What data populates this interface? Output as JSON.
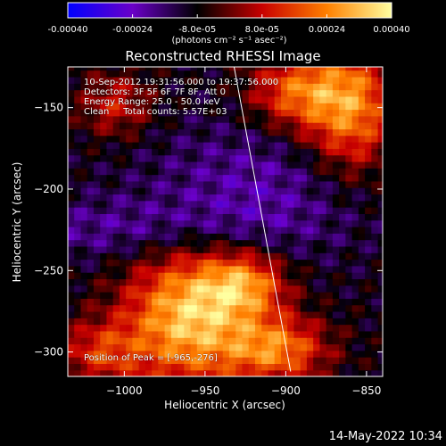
{
  "colorbar": {
    "ticks": [
      "-0.00040",
      "-0.00024",
      "-8.0e-05",
      "8.0e-05",
      "0.00024",
      "0.00040"
    ],
    "tick_values": [
      -0.0004,
      -0.00024,
      -8e-05,
      8e-05,
      0.00024,
      0.0004
    ],
    "range": [
      -0.0004,
      0.0004
    ],
    "unit_label": "(photons cm⁻² s⁻¹ asec⁻²)",
    "colors": [
      "#0000ff",
      "#6a00c8",
      "#000000",
      "#c80000",
      "#ff8000",
      "#ffffa0"
    ]
  },
  "chart_data": {
    "type": "heatmap",
    "title": "Reconstructed RHESSI Image",
    "xlabel": "Heliocentric X (arcsec)",
    "ylabel": "Heliocentric Y (arcsec)",
    "xlim": [
      -1035,
      -840
    ],
    "ylim": [
      -315,
      -125
    ],
    "xticks": [
      -1000,
      -950,
      -900,
      -850
    ],
    "yticks": [
      -150,
      -200,
      -250,
      -300
    ],
    "xtick_labels": [
      "−1000",
      "−950",
      "−900",
      "−850"
    ],
    "ytick_labels": [
      "−150",
      "−200",
      "−250",
      "−300"
    ],
    "limb_line": [
      [
        -932,
        -125
      ],
      [
        -897,
        -312
      ]
    ],
    "peak": [
      -965,
      -276
    ],
    "sources": [
      {
        "x": -960,
        "y": -278,
        "sx": 28,
        "sy": 30,
        "amp": 0.00042
      },
      {
        "x": -925,
        "y": -258,
        "sx": 18,
        "sy": 14,
        "amp": 0.00028
      },
      {
        "x": -905,
        "y": -298,
        "sx": 22,
        "sy": 14,
        "amp": 0.0003
      },
      {
        "x": -860,
        "y": -150,
        "sx": 20,
        "sy": 28,
        "amp": 0.00034
      },
      {
        "x": -895,
        "y": -140,
        "sx": 20,
        "sy": 16,
        "amp": 0.00026
      },
      {
        "x": -1015,
        "y": -300,
        "sx": 18,
        "sy": 14,
        "amp": 0.0002
      },
      {
        "x": -1005,
        "y": -148,
        "sx": 16,
        "sy": 14,
        "amp": 0.00018
      },
      {
        "x": -1000,
        "y": -225,
        "sx": 60,
        "sy": 14,
        "amp": -0.0001
      },
      {
        "x": -920,
        "y": -200,
        "sx": 50,
        "sy": 30,
        "amp": -0.00012
      }
    ]
  },
  "info": {
    "line1": "10-Sep-2012 19:31:56.000 to 19:37:56.000",
    "line2": "Detectors: 3F 5F 6F 7F 8F, Att 0",
    "line3": "Energy Range: 25.0 - 50.0 keV",
    "line4": "Clean     Total counts: 5.57E+03",
    "peak_text": "Position of Peak = [-965,-276]"
  },
  "footer": {
    "date": "14-May-2022 10:34"
  }
}
